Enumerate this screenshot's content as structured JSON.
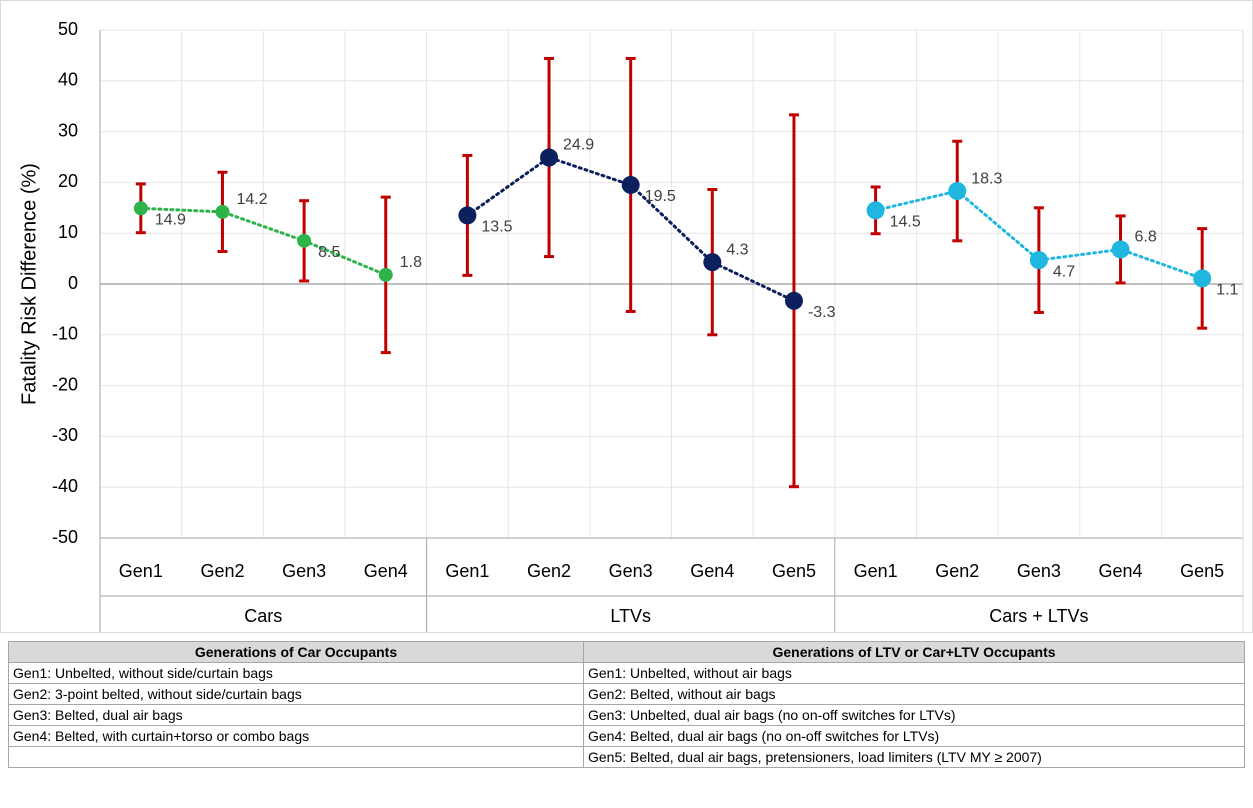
{
  "chart_data": {
    "type": "line",
    "y_label": "Fatality Risk Difference (%)",
    "ylim": [
      -50,
      50
    ],
    "yticks": [
      -50,
      -40,
      -30,
      -20,
      -10,
      0,
      10,
      20,
      30,
      40,
      50
    ],
    "grid": true,
    "error_color": "#c00000",
    "series": [
      {
        "group": "Cars",
        "color": "#2db34a",
        "categories": [
          "Gen1",
          "Gen2",
          "Gen3",
          "Gen4"
        ],
        "values": [
          14.9,
          14.2,
          8.5,
          1.8
        ],
        "errors": [
          4.8,
          7.8,
          7.9,
          15.3
        ]
      },
      {
        "group": "LTVs",
        "color": "#0c1f5e",
        "categories": [
          "Gen1",
          "Gen2",
          "Gen3",
          "Gen4",
          "Gen5"
        ],
        "values": [
          13.5,
          24.9,
          19.5,
          4.3,
          -3.3
        ],
        "errors": [
          11.8,
          19.5,
          24.9,
          14.3,
          36.6
        ]
      },
      {
        "group": "Cars + LTVs",
        "color": "#1fb6e0",
        "categories": [
          "Gen1",
          "Gen2",
          "Gen3",
          "Gen4",
          "Gen5"
        ],
        "values": [
          14.5,
          18.3,
          4.7,
          6.8,
          1.1
        ],
        "errors": [
          4.6,
          9.8,
          10.3,
          6.6,
          9.8
        ]
      }
    ]
  },
  "table": {
    "headers": [
      "Generations of Car Occupants",
      "Generations of LTV or Car+LTV Occupants"
    ],
    "rows": [
      [
        "Gen1: Unbelted, without side/curtain bags",
        "Gen1: Unbelted, without air bags"
      ],
      [
        "Gen2: 3-point belted, without side/curtain bags",
        "Gen2: Belted, without air bags"
      ],
      [
        "Gen3: Belted, dual air bags",
        "Gen3: Unbelted, dual air bags (no on-off switches for LTVs)"
      ],
      [
        "Gen4: Belted, with curtain+torso or combo bags",
        "Gen4: Belted, dual air bags (no on-off switches for LTVs)"
      ],
      [
        null,
        "Gen5: Belted, dual air bags, pretensioners, load limiters (LTV MY ≥ 2007)"
      ]
    ]
  }
}
